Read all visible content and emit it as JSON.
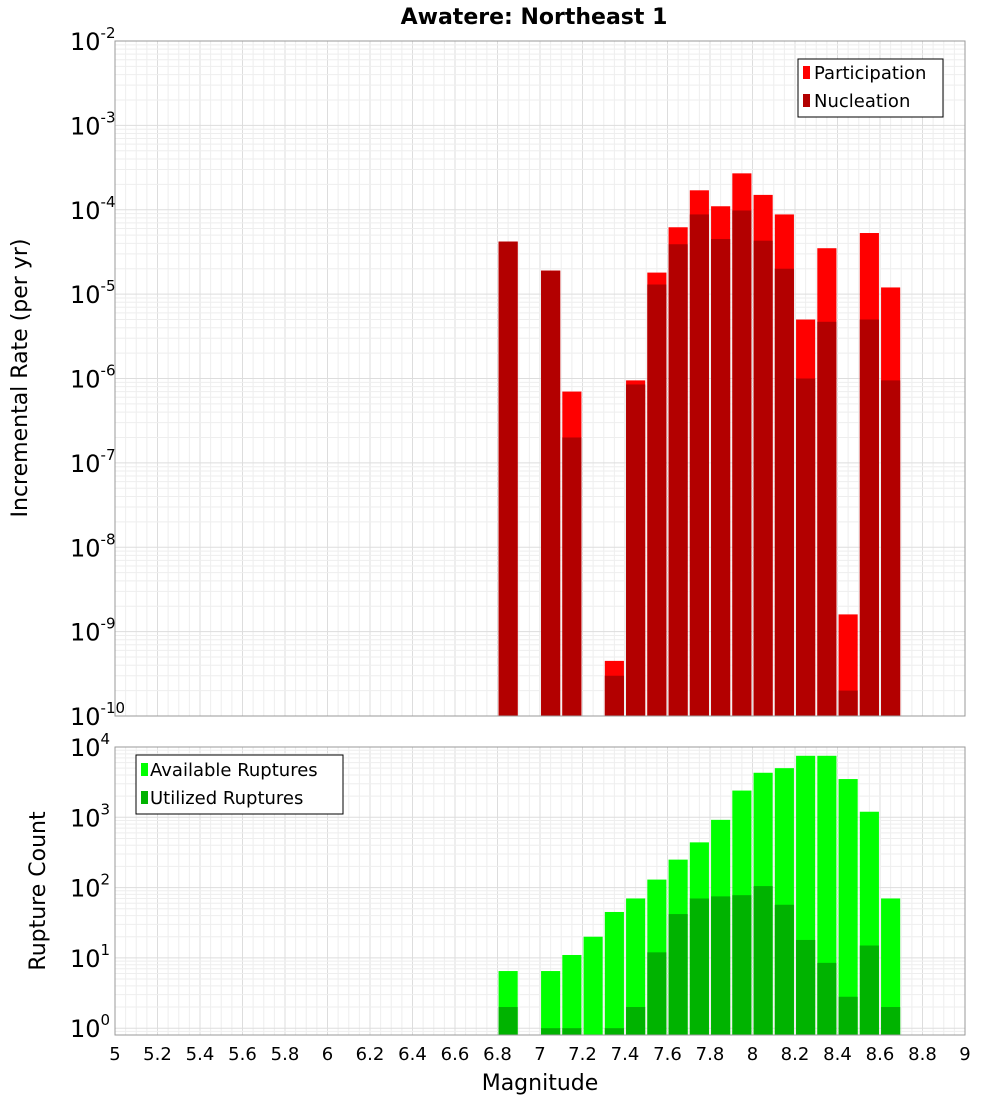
{
  "title": "Awatere: Northeast 1",
  "x_label": "Magnitude",
  "x_ticks": [
    "5",
    "5.2",
    "5.4",
    "5.6",
    "5.8",
    "6",
    "6.2",
    "6.4",
    "6.6",
    "6.8",
    "7",
    "7.2",
    "7.4",
    "7.6",
    "7.8",
    "8",
    "8.2",
    "8.4",
    "8.6",
    "8.8",
    "9"
  ],
  "chart_data": [
    {
      "type": "bar",
      "title": "Awatere: Northeast 1",
      "xlabel": "Magnitude",
      "ylabel": "Incremental Rate (per yr)",
      "xlim": [
        5,
        9
      ],
      "ylim": [
        1e-10,
        0.01
      ],
      "yscale": "log",
      "y_tick_exponents": [
        -10,
        -9,
        -8,
        -7,
        -6,
        -5,
        -4,
        -3,
        -2
      ],
      "grid": true,
      "legend_position": "top-right",
      "bar_width": 0.09,
      "x": [
        6.85,
        6.95,
        7.05,
        7.15,
        7.25,
        7.35,
        7.45,
        7.55,
        7.65,
        7.75,
        7.85,
        7.95,
        8.05,
        8.15,
        8.25,
        8.35,
        8.45,
        8.55,
        8.65
      ],
      "series": [
        {
          "name": "Participation",
          "color": "#ff0000",
          "values": [
            4.2e-05,
            null,
            1.9e-05,
            7e-07,
            null,
            4.5e-10,
            9.5e-07,
            1.8e-05,
            6.2e-05,
            0.00017,
            0.00011,
            0.00027,
            0.00015,
            8.8e-05,
            5e-06,
            3.5e-05,
            1.6e-09,
            5.3e-05,
            1.2e-05
          ]
        },
        {
          "name": "Nucleation",
          "color": "#b30000",
          "values": [
            4.2e-05,
            null,
            1.9e-05,
            2e-07,
            null,
            3e-10,
            8.5e-07,
            1.3e-05,
            3.9e-05,
            8.8e-05,
            4.5e-05,
            9.8e-05,
            4.3e-05,
            2e-05,
            1e-06,
            4.7e-06,
            2e-10,
            5e-06,
            9.5e-07
          ]
        }
      ]
    },
    {
      "type": "bar",
      "xlabel": "Magnitude",
      "ylabel": "Rupture Count",
      "xlim": [
        5,
        9
      ],
      "ylim": [
        0.8,
        10000
      ],
      "yscale": "log",
      "y_tick_exponents": [
        0,
        1,
        2,
        3,
        4
      ],
      "grid": true,
      "legend_position": "top-left",
      "bar_width": 0.09,
      "x": [
        6.85,
        6.95,
        7.05,
        7.15,
        7.25,
        7.35,
        7.45,
        7.55,
        7.65,
        7.75,
        7.85,
        7.95,
        8.05,
        8.15,
        8.25,
        8.35,
        8.45,
        8.55,
        8.65
      ],
      "series": [
        {
          "name": "Available Ruptures",
          "color": "#00ff00",
          "values": [
            6.5,
            null,
            6.5,
            11,
            20,
            45,
            70,
            130,
            250,
            440,
            920,
            2400,
            4300,
            5000,
            7500,
            7500,
            3500,
            1200,
            70
          ]
        },
        {
          "name": "Utilized Ruptures",
          "color": "#00b300",
          "values": [
            2,
            null,
            1,
            1,
            null,
            1,
            2,
            12,
            42,
            70,
            75,
            78,
            105,
            57,
            18,
            8.5,
            2.8,
            15,
            2
          ]
        }
      ]
    }
  ]
}
